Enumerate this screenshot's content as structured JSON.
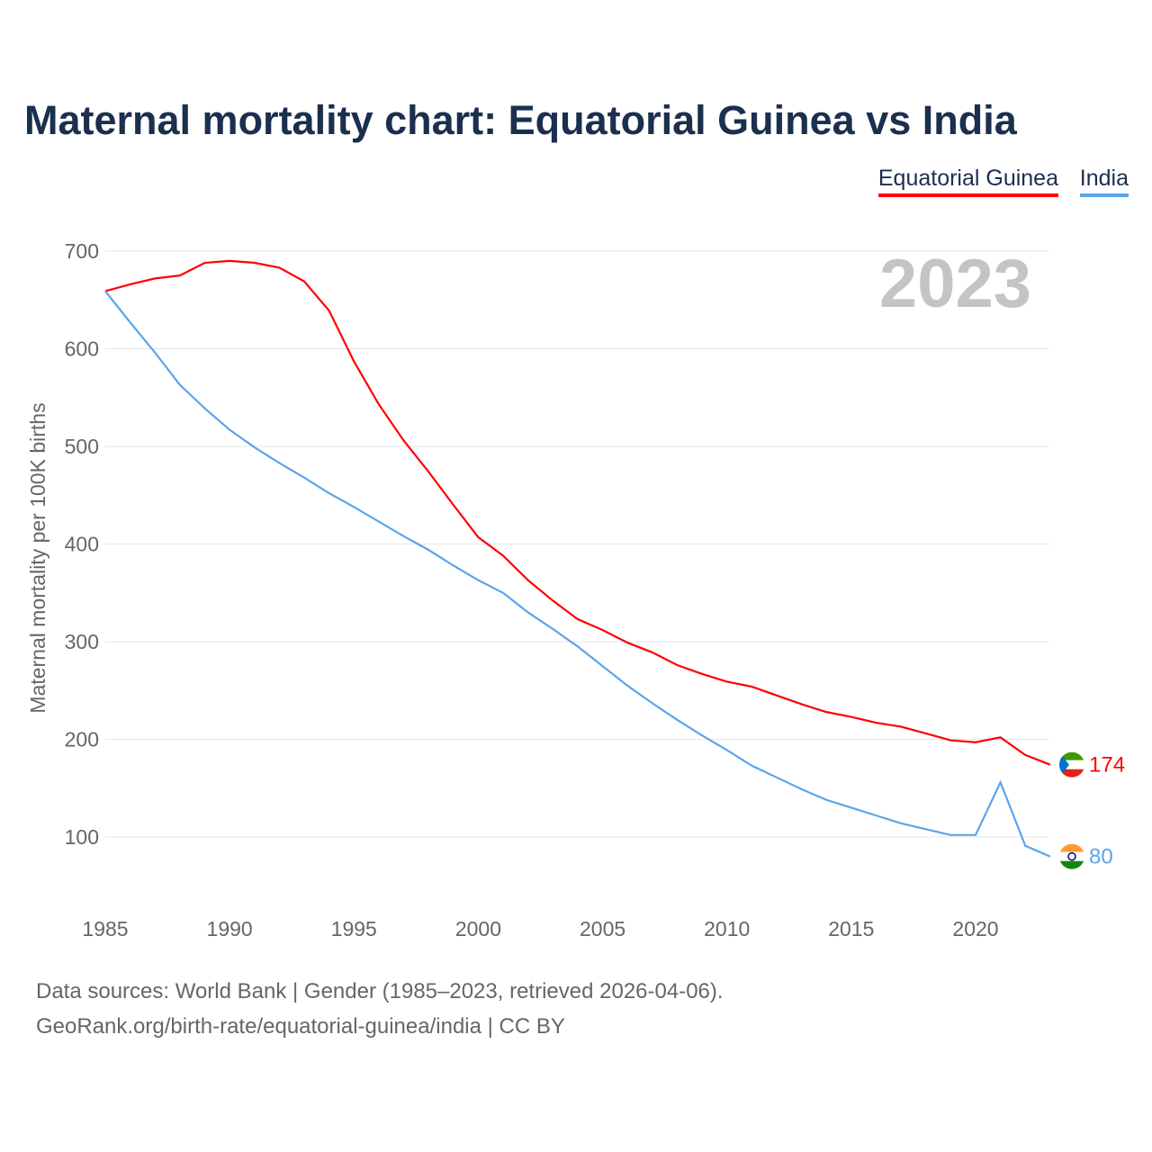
{
  "title": "Maternal mortality chart: Equatorial Guinea vs India",
  "year_label": "2023",
  "footer": {
    "line1": "Data sources: World Bank | Gender (1985–2023, retrieved 2026-04-06).",
    "line2": "GeoRank.org/birth-rate/equatorial-guinea/india | CC BY"
  },
  "chart_data": {
    "type": "line",
    "title": "Maternal mortality chart: Equatorial Guinea vs India",
    "ylabel": "Maternal mortality per 100K births",
    "xlabel": "",
    "xlim": [
      1985,
      2023
    ],
    "ylim": [
      40,
      700
    ],
    "x_ticks": [
      1985,
      1990,
      1995,
      2000,
      2005,
      2010,
      2015,
      2020
    ],
    "y_ticks": [
      100,
      200,
      300,
      400,
      500,
      600,
      700
    ],
    "grid": true,
    "legend": "top-right",
    "x": [
      1985,
      1986,
      1987,
      1988,
      1989,
      1990,
      1991,
      1992,
      1993,
      1994,
      1995,
      1996,
      1997,
      1998,
      1999,
      2000,
      2001,
      2002,
      2003,
      2004,
      2005,
      2006,
      2007,
      2008,
      2009,
      2010,
      2011,
      2012,
      2013,
      2014,
      2015,
      2016,
      2017,
      2018,
      2019,
      2020,
      2021,
      2022,
      2023
    ],
    "series": [
      {
        "name": "Equatorial Guinea",
        "color": "#ff0000",
        "end_label": "174",
        "values": [
          659,
          666,
          672,
          675,
          688,
          690,
          688,
          683,
          669,
          639,
          587,
          543,
          506,
          474,
          440,
          407,
          388,
          363,
          342,
          323,
          312,
          299,
          289,
          276,
          267,
          259,
          254,
          245,
          236,
          228,
          223,
          217,
          213,
          206,
          199,
          197,
          202,
          184,
          174
        ]
      },
      {
        "name": "India",
        "color": "#5aa5ea",
        "end_label": "80",
        "values": [
          659,
          627,
          596,
          563,
          539,
          517,
          499,
          483,
          468,
          452,
          438,
          423,
          408,
          394,
          378,
          363,
          350,
          330,
          313,
          295,
          275,
          255,
          237,
          220,
          204,
          189,
          173,
          161,
          149,
          138,
          130,
          122,
          114,
          108,
          102,
          102,
          156,
          91,
          80
        ]
      }
    ]
  }
}
